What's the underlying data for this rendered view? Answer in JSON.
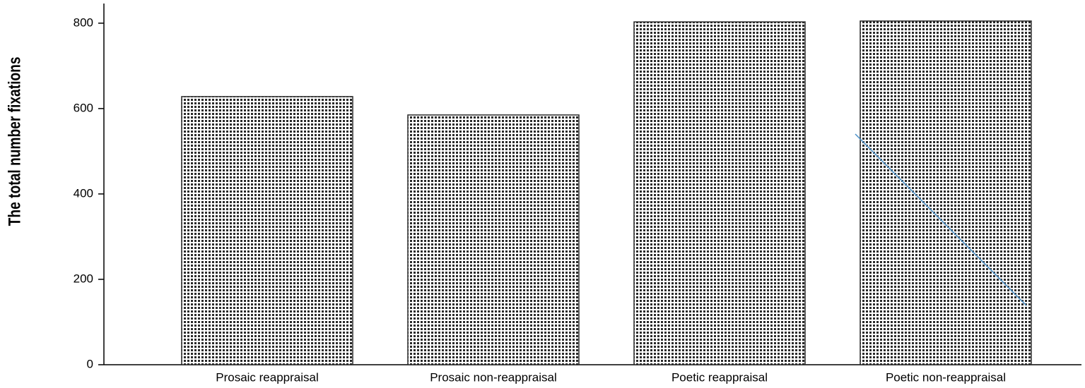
{
  "chart_data": {
    "type": "bar",
    "y_label": "The total number fixations",
    "categories": [
      "Prosaic reappraisal",
      "Prosaic non-reappraisal",
      "Poetic reappraisal",
      "Poetic non-reappraisal"
    ],
    "values": [
      628,
      585,
      803,
      805
    ],
    "color": "#2a2a2a",
    "ylim": [
      0,
      846
    ],
    "yticks": [
      0,
      200,
      400,
      600,
      800
    ],
    "grid": false
  }
}
